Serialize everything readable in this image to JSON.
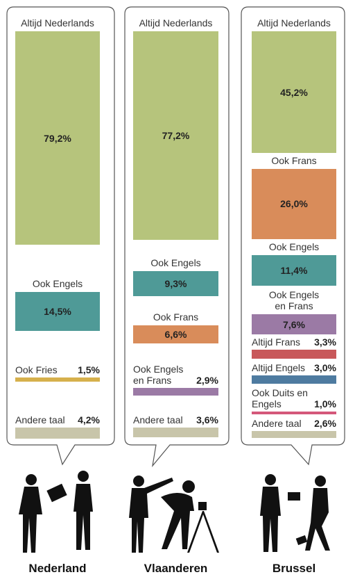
{
  "chart_data": [
    {
      "type": "stacked-bar",
      "title": "Nederland",
      "categories": [
        "Altijd Nederlands",
        "Ook Engels",
        "Ook Fries",
        "Andere taal"
      ],
      "values": [
        79.2,
        14.5,
        1.5,
        4.2
      ],
      "value_labels": [
        "79,2%",
        "14,5%",
        "1,5%",
        "4,2%"
      ],
      "colors": [
        "#b6c47c",
        "#4f9a97",
        "#d6b04c",
        "#c8c5aa"
      ]
    },
    {
      "type": "stacked-bar",
      "title": "Vlaanderen",
      "categories": [
        "Altijd Nederlands",
        "Ook Engels",
        "Ook Frans",
        "Ook Engels en Frans",
        "Andere taal"
      ],
      "values": [
        77.2,
        9.3,
        6.6,
        2.9,
        3.6
      ],
      "value_labels": [
        "77,2%",
        "9,3%",
        "6,6%",
        "2,9%",
        "3,6%"
      ],
      "colors": [
        "#b6c47c",
        "#4f9a97",
        "#d98c5a",
        "#9b7aa5",
        "#c8c5aa"
      ]
    },
    {
      "type": "stacked-bar",
      "title": "Brussel",
      "categories": [
        "Altijd Nederlands",
        "Ook Frans",
        "Ook Engels",
        "Ook Engels en Frans",
        "Altijd Frans",
        "Altijd Engels",
        "Ook Duits en Engels",
        "Andere taal"
      ],
      "values": [
        45.2,
        26.0,
        11.4,
        7.6,
        3.3,
        3.0,
        1.0,
        2.6
      ],
      "value_labels": [
        "45,2%",
        "26,0%",
        "11,4%",
        "7,6%",
        "3,3%",
        "3,0%",
        "1,0%",
        "2,6%"
      ],
      "colors": [
        "#b6c47c",
        "#d98c5a",
        "#4f9a97",
        "#9b7aa5",
        "#c8585a",
        "#4e7ba0",
        "#d4587a",
        "#c8c5aa"
      ]
    }
  ]
}
